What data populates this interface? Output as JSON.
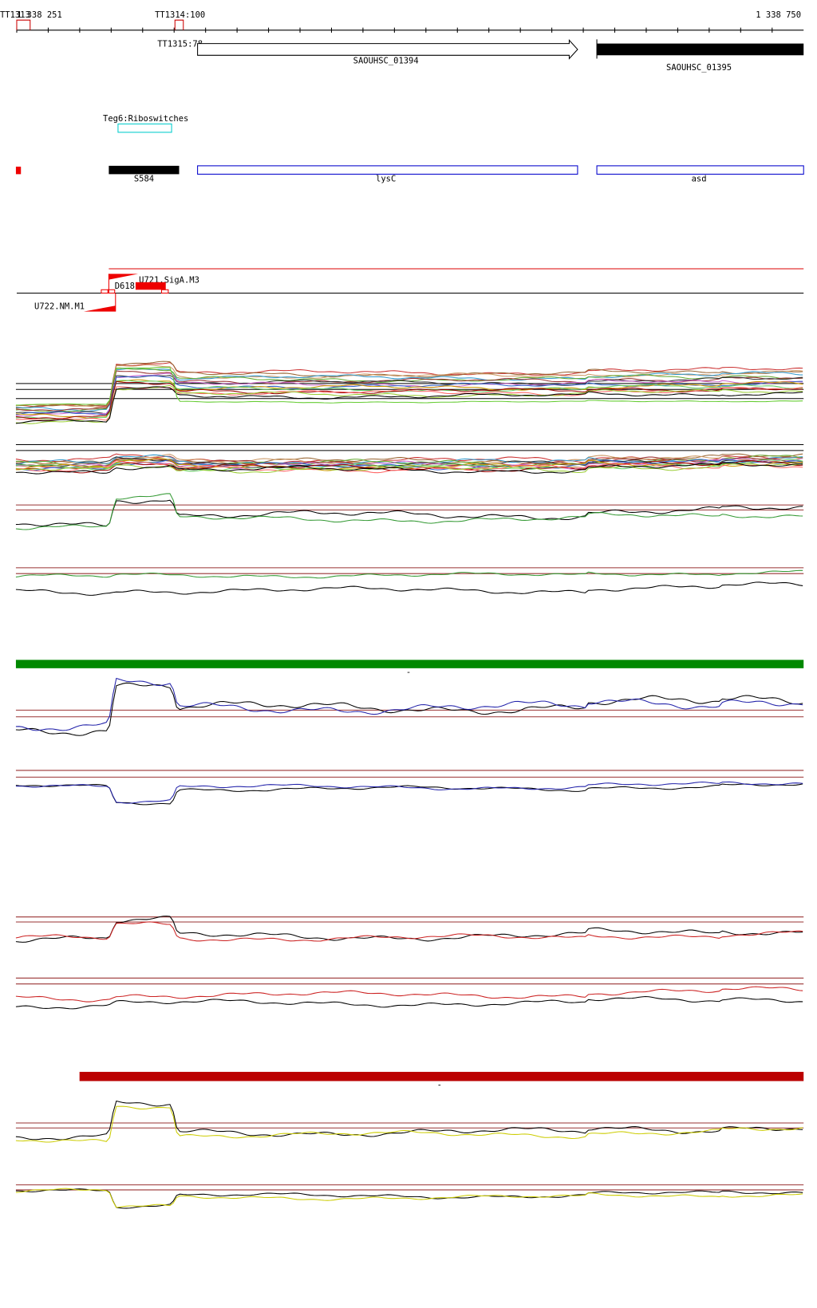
{
  "ruler": {
    "start_label": "1 338 251",
    "end_label": "1 338 750",
    "terminators": [
      "TT1313",
      "TT1314:100",
      "TT1315:78"
    ]
  },
  "genes": [
    "SAOUHSC_01394",
    "SAOUHSC_01395"
  ],
  "riboswitch": "Teg6:Riboswitches",
  "annotations": [
    "S584",
    "lysC",
    "asd"
  ],
  "promoters": [
    "U721.SigA.M3",
    "D618",
    "U722.NM.M1"
  ],
  "separators": [
    "-",
    "-"
  ]
}
